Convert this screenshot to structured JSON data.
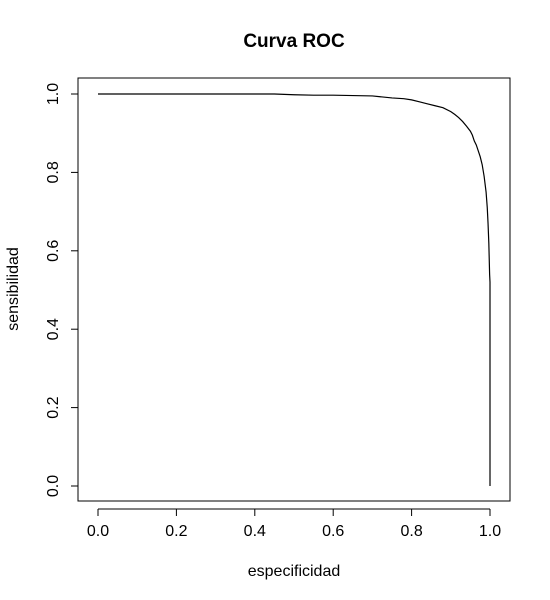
{
  "chart_data": {
    "type": "line",
    "title": "Curva ROC",
    "xlabel": "especificidad",
    "ylabel": "sensibilidad",
    "xlim": [
      0.0,
      1.0
    ],
    "ylim": [
      0.0,
      1.0
    ],
    "x_ticks": [
      "0.0",
      "0.2",
      "0.4",
      "0.6",
      "0.8",
      "1.0"
    ],
    "y_ticks": [
      "0.0",
      "0.2",
      "0.4",
      "0.6",
      "0.8",
      "1.0"
    ],
    "grid": false,
    "legend": "none",
    "line_color": "#000000",
    "series": [
      {
        "x": [
          0.0,
          0.1,
          0.2,
          0.3,
          0.4,
          0.45,
          0.5,
          0.55,
          0.6,
          0.65,
          0.7,
          0.72,
          0.75,
          0.78,
          0.8,
          0.82,
          0.84,
          0.86,
          0.88,
          0.9,
          0.91,
          0.92,
          0.93,
          0.94,
          0.95,
          0.955,
          0.96,
          0.965,
          0.97,
          0.975,
          0.98,
          0.985,
          0.99,
          0.993,
          0.995,
          0.997,
          0.998,
          0.999,
          1.0,
          1.0,
          1.0
        ],
        "y": [
          1.0,
          1.0,
          1.0,
          1.0,
          1.0,
          1.0,
          0.998,
          0.997,
          0.997,
          0.996,
          0.995,
          0.993,
          0.99,
          0.988,
          0.985,
          0.98,
          0.975,
          0.97,
          0.965,
          0.955,
          0.948,
          0.94,
          0.93,
          0.918,
          0.905,
          0.895,
          0.88,
          0.87,
          0.855,
          0.84,
          0.82,
          0.79,
          0.75,
          0.71,
          0.67,
          0.62,
          0.58,
          0.54,
          0.52,
          0.3,
          0.0
        ]
      }
    ]
  }
}
